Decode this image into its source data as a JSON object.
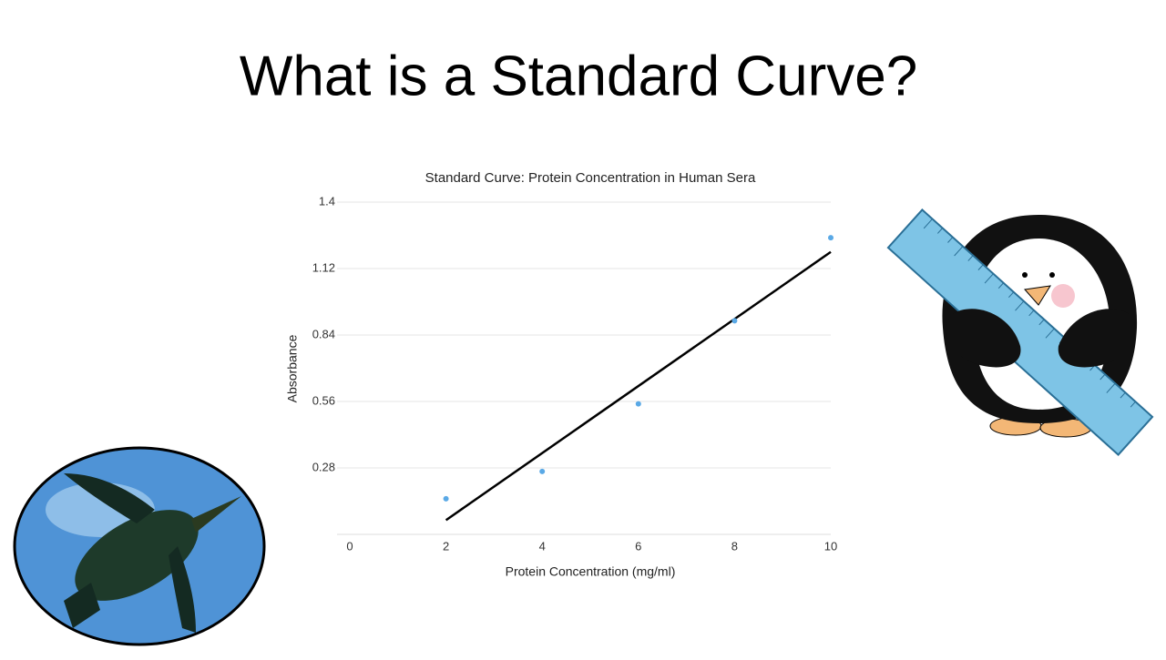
{
  "slide": {
    "title": "What is a Standard Curve?"
  },
  "chart_data": {
    "type": "scatter",
    "title": "Standard Curve:  Protein Concentration in Human Sera",
    "x_label": "Protein Concentration (mg/ml)",
    "y_label": "Absorbance",
    "x": [
      2,
      4,
      6,
      8,
      10
    ],
    "values": [
      0.15,
      0.265,
      0.55,
      0.9,
      1.25
    ],
    "color": "#5aa9e6",
    "trendline": {
      "x": [
        2,
        10
      ],
      "values": [
        0.06,
        1.19
      ],
      "color": "#000000"
    },
    "xlim": [
      0,
      10
    ],
    "xticks": [
      0,
      2,
      4,
      6,
      8,
      10
    ],
    "ylim": [
      0,
      1.4
    ],
    "yticks": [
      0.28,
      0.56,
      0.84,
      1.12,
      1.4
    ],
    "grid": true
  }
}
